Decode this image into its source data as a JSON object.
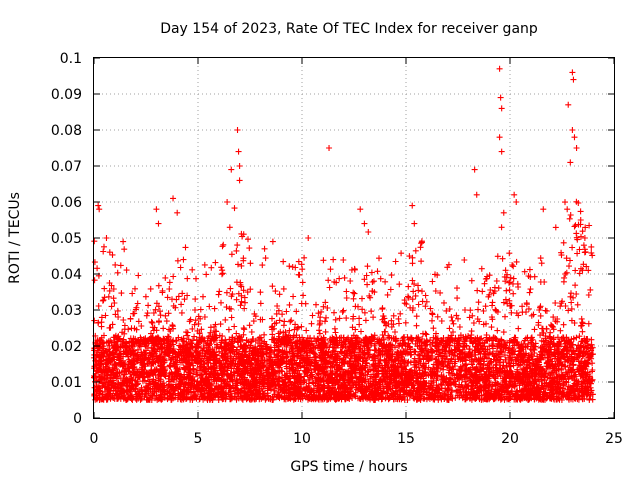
{
  "chart_data": {
    "type": "scatter",
    "title": "Day 154 of 2023, Rate Of TEC Index for receiver ganp",
    "xlabel": "GPS time / hours",
    "ylabel": "ROTI / TECUs",
    "xlim": [
      0,
      25
    ],
    "ylim": [
      0,
      0.1
    ],
    "x_ticks": [
      "0",
      "5",
      "10",
      "15",
      "20",
      "25"
    ],
    "y_ticks": [
      "0",
      "0.01",
      "0.02",
      "0.03",
      "0.04",
      "0.05",
      "0.06",
      "0.07",
      "0.08",
      "0.09",
      "0.1"
    ],
    "grid": true,
    "marker": "+",
    "series_color": "#ff0000",
    "x_range_of_data": [
      0,
      24
    ],
    "typical_band": [
      0.005,
      0.03
    ],
    "notable_points": [
      {
        "x": 0.2,
        "y": 0.059
      },
      {
        "x": 0.25,
        "y": 0.058
      },
      {
        "x": 0.6,
        "y": 0.05
      },
      {
        "x": 1.4,
        "y": 0.049
      },
      {
        "x": 3.0,
        "y": 0.058
      },
      {
        "x": 3.1,
        "y": 0.054
      },
      {
        "x": 3.8,
        "y": 0.061
      },
      {
        "x": 4.0,
        "y": 0.057
      },
      {
        "x": 4.3,
        "y": 0.044
      },
      {
        "x": 6.4,
        "y": 0.06
      },
      {
        "x": 6.6,
        "y": 0.069
      },
      {
        "x": 6.9,
        "y": 0.08
      },
      {
        "x": 6.95,
        "y": 0.074
      },
      {
        "x": 7.0,
        "y": 0.066
      },
      {
        "x": 7.0,
        "y": 0.07
      },
      {
        "x": 8.2,
        "y": 0.047
      },
      {
        "x": 8.6,
        "y": 0.049
      },
      {
        "x": 10.3,
        "y": 0.05
      },
      {
        "x": 11.3,
        "y": 0.075
      },
      {
        "x": 11.5,
        "y": 0.044
      },
      {
        "x": 12.8,
        "y": 0.058
      },
      {
        "x": 13.0,
        "y": 0.054
      },
      {
        "x": 15.3,
        "y": 0.059
      },
      {
        "x": 15.4,
        "y": 0.054
      },
      {
        "x": 18.3,
        "y": 0.069
      },
      {
        "x": 18.4,
        "y": 0.062
      },
      {
        "x": 19.5,
        "y": 0.097
      },
      {
        "x": 19.55,
        "y": 0.089
      },
      {
        "x": 19.6,
        "y": 0.086
      },
      {
        "x": 19.5,
        "y": 0.078
      },
      {
        "x": 19.6,
        "y": 0.074
      },
      {
        "x": 19.7,
        "y": 0.057
      },
      {
        "x": 20.2,
        "y": 0.062
      },
      {
        "x": 20.3,
        "y": 0.06
      },
      {
        "x": 21.6,
        "y": 0.058
      },
      {
        "x": 22.8,
        "y": 0.087
      },
      {
        "x": 23.0,
        "y": 0.096
      },
      {
        "x": 23.05,
        "y": 0.094
      },
      {
        "x": 23.0,
        "y": 0.08
      },
      {
        "x": 23.1,
        "y": 0.078
      },
      {
        "x": 23.2,
        "y": 0.075
      },
      {
        "x": 22.9,
        "y": 0.071
      },
      {
        "x": 23.4,
        "y": 0.055
      },
      {
        "x": 23.6,
        "y": 0.05
      }
    ]
  }
}
